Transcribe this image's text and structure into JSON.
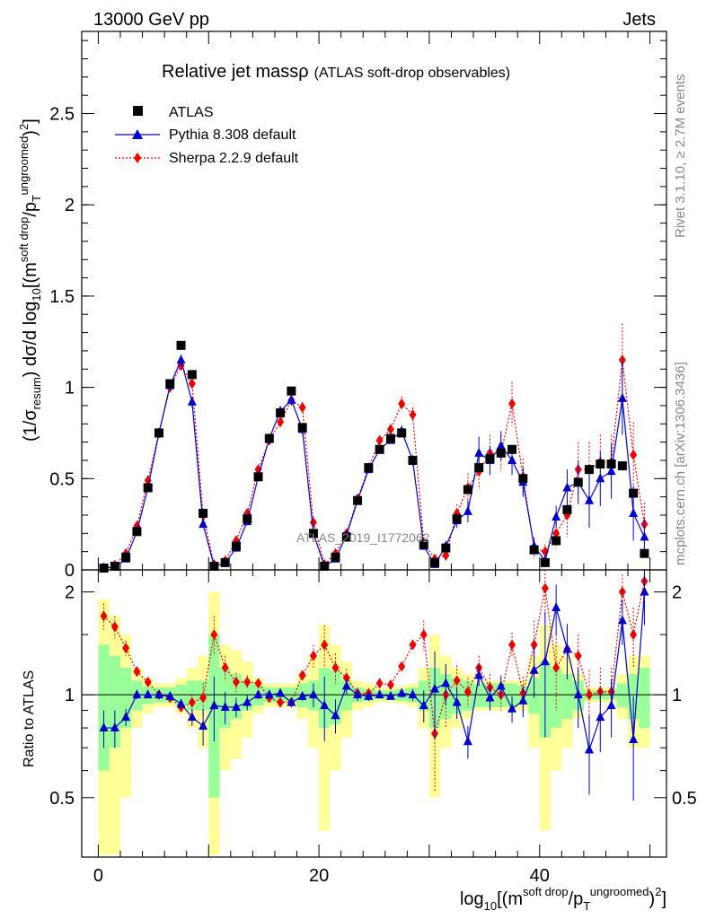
{
  "header": {
    "left": "13000 GeV pp",
    "right": "Jets"
  },
  "side": {
    "rivet": "Rivet 3.1.10, ≥ 2.7M events",
    "mcplots": "mcplots.cern.ch [arXiv:1306.3436]"
  },
  "watermark": "ATLAS_2019_I1772062",
  "chart_data": {
    "type": "line",
    "title": "Relative jet massρ",
    "subtitle": "(ATLAS soft-drop observables)",
    "ylabel": "(1/σresum) dσ/d log10[(msoft drop/pTungroomed)2]",
    "ylabel_parts": {
      "a": "(1/σ",
      "b": "resum",
      "c": ") dσ/d log",
      "d": "10",
      "e": "[(m",
      "f": "soft drop",
      "g": "/p",
      "h": "T",
      "i": "ungroomed",
      "j": ")",
      "k": "2",
      "l": "]"
    },
    "xlabel_parts": {
      "a": "log",
      "b": "10",
      "c": "[(m",
      "d": "soft drop",
      "e": "/p",
      "f": "T",
      "g": "ungroomed",
      "h": ")",
      "i": "2",
      "j": "]"
    },
    "ratio_ylabel": "Ratio to ATLAS",
    "xlim": [
      -1.5,
      51.5
    ],
    "ylim": [
      0,
      2.95
    ],
    "ratio_ylim": [
      0.335,
      2.32
    ],
    "xticks": [
      0,
      20,
      40
    ],
    "yticks": [
      0,
      0.5,
      1,
      1.5,
      2,
      2.5
    ],
    "yticklabels": [
      "0",
      "0.5",
      "1",
      "1.5",
      "2",
      "2.5"
    ],
    "ratio_yticks": [
      0.5,
      1,
      2
    ],
    "ratio_yticklabels": [
      "0.5",
      "1",
      "2"
    ],
    "legend_position": "top-left",
    "x": [
      0.5,
      1.5,
      2.5,
      3.5,
      4.5,
      5.5,
      6.5,
      7.5,
      8.5,
      9.5,
      10.5,
      11.5,
      12.5,
      13.5,
      14.5,
      15.5,
      16.5,
      17.5,
      18.5,
      19.5,
      20.5,
      21.5,
      22.5,
      23.5,
      24.5,
      25.5,
      26.5,
      27.5,
      28.5,
      29.5,
      30.5,
      31.5,
      32.5,
      33.5,
      34.5,
      35.5,
      36.5,
      37.5,
      38.5,
      39.5,
      40.5,
      41.5,
      42.5,
      43.5,
      44.5,
      45.5,
      46.5,
      47.5,
      48.5,
      49.5
    ],
    "series": [
      {
        "name": "ATLAS",
        "color": "#000000",
        "values": [
          0.01,
          0.02,
          0.07,
          0.21,
          0.45,
          0.75,
          1.02,
          1.23,
          1.07,
          0.31,
          0.02,
          0.04,
          0.13,
          0.28,
          0.51,
          0.72,
          0.86,
          0.98,
          0.78,
          0.2,
          0.02,
          0.07,
          0.18,
          0.38,
          0.56,
          0.66,
          0.72,
          0.75,
          0.6,
          0.14,
          0.04,
          0.12,
          0.28,
          0.44,
          0.56,
          0.61,
          0.64,
          0.66,
          0.5,
          0.11,
          0.04,
          0.16,
          0.33,
          0.48,
          0.55,
          0.58,
          0.58,
          0.57,
          0.42,
          0.09
        ],
        "ratio": []
      },
      {
        "name": "Pythia 8.308 default",
        "color": "#0000cc",
        "values": [
          0.008,
          0.016,
          0.06,
          0.21,
          0.45,
          0.75,
          1.01,
          1.15,
          0.92,
          0.25,
          0.02,
          0.037,
          0.12,
          0.265,
          0.51,
          0.72,
          0.87,
          0.93,
          0.77,
          0.2,
          0.02,
          0.06,
          0.19,
          0.38,
          0.55,
          0.66,
          0.71,
          0.76,
          0.6,
          0.13,
          0.03,
          0.13,
          0.27,
          0.32,
          0.64,
          0.6,
          0.68,
          0.6,
          0.48,
          0.13,
          0.05,
          0.29,
          0.45,
          0.48,
          0.38,
          0.5,
          0.54,
          0.94,
          0.31,
          0.18
        ],
        "ratio": [
          0.8,
          0.8,
          0.86,
          1.0,
          1.0,
          1.0,
          0.99,
          0.94,
          0.86,
          0.81,
          0.93,
          0.92,
          0.92,
          0.95,
          1.0,
          1.0,
          1.01,
          0.95,
          0.99,
          1.0,
          0.93,
          0.87,
          1.06,
          1.0,
          0.99,
          1.0,
          0.99,
          1.01,
          1.0,
          0.93,
          1.04,
          1.08,
          0.95,
          0.73,
          1.14,
          0.98,
          1.06,
          0.91,
          0.96,
          1.18,
          1.25,
          1.8,
          1.36,
          1.0,
          0.69,
          0.86,
          0.93,
          1.65,
          0.74,
          2.0
        ],
        "ratio_errors": [
          0.1,
          0.1,
          0.05,
          0.03,
          0.02,
          0.02,
          0.02,
          0.03,
          0.05,
          0.1,
          0.2,
          0.1,
          0.06,
          0.05,
          0.03,
          0.02,
          0.02,
          0.02,
          0.03,
          0.08,
          0.2,
          0.1,
          0.06,
          0.04,
          0.03,
          0.02,
          0.02,
          0.03,
          0.04,
          0.1,
          0.3,
          0.15,
          0.1,
          0.08,
          0.08,
          0.08,
          0.08,
          0.08,
          0.1,
          0.2,
          0.5,
          0.3,
          0.25,
          0.2,
          0.18,
          0.18,
          0.18,
          0.25,
          0.25,
          0.4
        ]
      },
      {
        "name": "Sherpa 2.2.9 default",
        "color": "#ee0000",
        "values": [
          0.012,
          0.026,
          0.09,
          0.24,
          0.49,
          0.75,
          1.0,
          1.12,
          1.02,
          0.3,
          0.03,
          0.05,
          0.16,
          0.31,
          0.55,
          0.71,
          0.81,
          0.93,
          0.89,
          0.26,
          0.03,
          0.09,
          0.2,
          0.39,
          0.56,
          0.71,
          0.77,
          0.91,
          0.85,
          0.15,
          0.06,
          0.08,
          0.31,
          0.45,
          0.54,
          0.64,
          0.64,
          0.91,
          0.51,
          0.12,
          0.1,
          0.2,
          0.3,
          0.55,
          0.55,
          0.59,
          0.59,
          1.15,
          0.63,
          0.25
        ],
        "ratio": [
          1.7,
          1.58,
          1.37,
          1.17,
          1.09,
          1.0,
          0.98,
          0.92,
          0.95,
          0.98,
          1.5,
          1.2,
          1.09,
          1.09,
          1.08,
          0.98,
          0.95,
          0.95,
          1.14,
          1.3,
          1.4,
          1.2,
          1.12,
          1.01,
          1.01,
          1.08,
          1.07,
          1.21,
          1.4,
          1.5,
          0.77,
          1.0,
          1.1,
          1.02,
          1.2,
          1.05,
          1.0,
          1.4,
          1.01,
          1.4,
          2.05,
          1.2,
          1.36,
          1.3,
          1.0,
          1.02,
          1.02,
          2.0,
          1.5,
          2.15
        ],
        "ratio_errors": [
          0.15,
          0.12,
          0.07,
          0.04,
          0.03,
          0.02,
          0.02,
          0.03,
          0.05,
          0.1,
          0.2,
          0.1,
          0.07,
          0.05,
          0.03,
          0.02,
          0.02,
          0.02,
          0.04,
          0.1,
          0.2,
          0.12,
          0.07,
          0.04,
          0.03,
          0.02,
          0.02,
          0.03,
          0.05,
          0.15,
          0.25,
          0.2,
          0.12,
          0.1,
          0.1,
          0.1,
          0.1,
          0.12,
          0.12,
          0.25,
          0.4,
          0.3,
          0.25,
          0.2,
          0.18,
          0.18,
          0.18,
          0.25,
          0.3,
          0.4
        ]
      }
    ],
    "main_errors_pythia": [
      0.002,
      0.003,
      0.005,
      0.01,
      0.01,
      0.015,
      0.02,
      0.03,
      0.03,
      0.02,
      0.005,
      0.005,
      0.01,
      0.015,
      0.02,
      0.02,
      0.02,
      0.03,
      0.03,
      0.02,
      0.005,
      0.01,
      0.015,
      0.02,
      0.02,
      0.02,
      0.02,
      0.03,
      0.03,
      0.02,
      0.01,
      0.03,
      0.04,
      0.06,
      0.09,
      0.08,
      0.08,
      0.08,
      0.08,
      0.04,
      0.02,
      0.06,
      0.1,
      0.12,
      0.15,
      0.15,
      0.15,
      0.2,
      0.15,
      0.1
    ],
    "main_errors_sherpa": [
      0.003,
      0.004,
      0.006,
      0.01,
      0.015,
      0.015,
      0.02,
      0.03,
      0.03,
      0.02,
      0.008,
      0.008,
      0.015,
      0.02,
      0.02,
      0.02,
      0.02,
      0.03,
      0.03,
      0.03,
      0.01,
      0.015,
      0.02,
      0.02,
      0.02,
      0.02,
      0.03,
      0.04,
      0.04,
      0.03,
      0.02,
      0.04,
      0.05,
      0.08,
      0.1,
      0.1,
      0.1,
      0.12,
      0.1,
      0.06,
      0.04,
      0.08,
      0.12,
      0.15,
      0.15,
      0.15,
      0.15,
      0.2,
      0.18,
      0.12
    ],
    "ratio_band_inner": [
      0.4,
      0.3,
      0.2,
      0.1,
      0.06,
      0.05,
      0.05,
      0.07,
      0.1,
      0.1,
      0.5,
      0.2,
      0.15,
      0.1,
      0.07,
      0.05,
      0.05,
      0.05,
      0.08,
      0.1,
      0.2,
      0.18,
      0.1,
      0.05,
      0.04,
      0.03,
      0.03,
      0.04,
      0.05,
      0.1,
      0.2,
      0.15,
      0.12,
      0.1,
      0.08,
      0.08,
      0.08,
      0.08,
      0.06,
      0.12,
      0.25,
      0.2,
      0.15,
      0.1,
      0.03,
      0.03,
      0.03,
      0.08,
      0.15,
      0.2
    ],
    "ratio_band_outer": [
      0.9,
      0.7,
      0.5,
      0.2,
      0.12,
      0.08,
      0.08,
      0.12,
      0.2,
      0.3,
      1.0,
      0.4,
      0.35,
      0.25,
      0.12,
      0.08,
      0.08,
      0.08,
      0.15,
      0.3,
      0.6,
      0.4,
      0.25,
      0.1,
      0.08,
      0.05,
      0.05,
      0.06,
      0.08,
      0.2,
      0.5,
      0.3,
      0.2,
      0.15,
      0.1,
      0.1,
      0.1,
      0.1,
      0.1,
      0.3,
      0.6,
      0.4,
      0.3,
      0.15,
      0.05,
      0.05,
      0.05,
      0.15,
      0.3,
      0.3
    ]
  }
}
